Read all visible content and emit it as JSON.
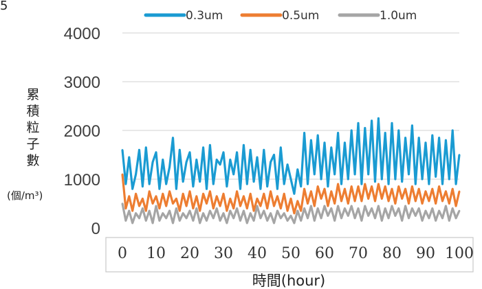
{
  "corner_label": "5",
  "chart_data": {
    "type": "line",
    "x": [
      0,
      1,
      2,
      3,
      4,
      5,
      6,
      7,
      8,
      9,
      10,
      11,
      12,
      13,
      14,
      15,
      16,
      17,
      18,
      19,
      20,
      21,
      22,
      23,
      24,
      25,
      26,
      27,
      28,
      29,
      30,
      31,
      32,
      33,
      34,
      35,
      36,
      37,
      38,
      39,
      40,
      41,
      42,
      43,
      44,
      45,
      46,
      47,
      48,
      49,
      50,
      51,
      52,
      53,
      54,
      55,
      56,
      57,
      58,
      59,
      60,
      61,
      62,
      63,
      64,
      65,
      66,
      67,
      68,
      69,
      70,
      71,
      72,
      73,
      74,
      75,
      76,
      77,
      78,
      79,
      80,
      81,
      82,
      83,
      84,
      85,
      86,
      87,
      88,
      89,
      90,
      91,
      92,
      93,
      94,
      95,
      96,
      97,
      98,
      99,
      100
    ],
    "series": [
      {
        "name": "0.3um",
        "color": "#1a9bd2",
        "values": [
          1600,
          900,
          1450,
          800,
          1100,
          1600,
          850,
          1650,
          900,
          1350,
          1550,
          800,
          1400,
          900,
          1250,
          1850,
          800,
          1600,
          950,
          1350,
          1550,
          850,
          1400,
          950,
          1650,
          800,
          1700,
          900,
          1400,
          1300,
          1550,
          850,
          1400,
          1100,
          1550,
          800,
          1700,
          900,
          1600,
          950,
          1450,
          800,
          1600,
          850,
          1350,
          1500,
          800,
          1650,
          900,
          1300,
          1000,
          700,
          1200,
          850,
          1950,
          900,
          1800,
          1100,
          1900,
          1000,
          1750,
          850,
          1650,
          1100,
          1950,
          900,
          1750,
          1000,
          2000,
          1100,
          2150,
          900,
          2050,
          1100,
          2200,
          950,
          2250,
          1000,
          1950,
          900,
          2150,
          1000,
          2000,
          950,
          1850,
          1100,
          2100,
          900,
          1850,
          1000,
          1750,
          900,
          1900,
          1050,
          1850,
          900,
          1800,
          1000,
          2000,
          900,
          1500
        ]
      },
      {
        "name": "0.5um",
        "color": "#ed7d31",
        "values": [
          1100,
          400,
          650,
          350,
          700,
          450,
          600,
          350,
          750,
          500,
          650,
          400,
          700,
          450,
          750,
          500,
          600,
          350,
          700,
          450,
          750,
          400,
          650,
          350,
          700,
          500,
          750,
          400,
          650,
          450,
          700,
          350,
          600,
          400,
          750,
          450,
          650,
          400,
          700,
          350,
          600,
          450,
          700,
          400,
          750,
          450,
          650,
          400,
          700,
          350,
          600,
          300,
          550,
          350,
          800,
          500,
          750,
          450,
          850,
          600,
          800,
          450,
          750,
          500,
          900,
          550,
          800,
          500,
          850,
          550,
          850,
          550,
          900,
          600,
          850,
          550,
          900,
          600,
          850,
          550,
          800,
          500,
          850,
          600,
          800,
          500,
          850,
          550,
          800,
          500,
          750,
          550,
          800,
          500,
          850,
          550,
          750,
          500,
          800,
          450,
          750
        ]
      },
      {
        "name": "1.0um",
        "color": "#a5a5a5",
        "values": [
          500,
          150,
          350,
          100,
          300,
          200,
          400,
          150,
          350,
          100,
          450,
          150,
          300,
          200,
          350,
          100,
          400,
          150,
          300,
          200,
          350,
          150,
          400,
          100,
          300,
          150,
          350,
          200,
          400,
          150,
          300,
          100,
          350,
          200,
          400,
          150,
          350,
          100,
          300,
          150,
          450,
          200,
          350,
          150,
          300,
          100,
          350,
          200,
          300,
          150,
          250,
          100,
          350,
          150,
          400,
          200,
          450,
          150,
          400,
          200,
          450,
          250,
          400,
          150,
          450,
          200,
          400,
          250,
          450,
          200,
          400,
          150,
          450,
          250,
          400,
          200,
          450,
          150,
          400,
          200,
          450,
          250,
          400,
          150,
          450,
          200,
          400,
          250,
          400,
          150,
          350,
          200,
          400,
          150,
          350,
          200,
          450,
          150,
          400,
          200,
          350
        ]
      }
    ],
    "xlabel": "時間(hour)",
    "ylabel_chars": [
      "累",
      "積",
      "粒",
      "子",
      "數"
    ],
    "yunit": "(個/m³)",
    "xlim": [
      0,
      100
    ],
    "ylim": [
      0,
      4000
    ],
    "yticks": [
      0,
      1000,
      2000,
      3000,
      4000
    ],
    "xticks": [
      0,
      10,
      20,
      30,
      40,
      50,
      60,
      70,
      80,
      90,
      100
    ],
    "grid": "horizontal",
    "legend_position": "top"
  }
}
